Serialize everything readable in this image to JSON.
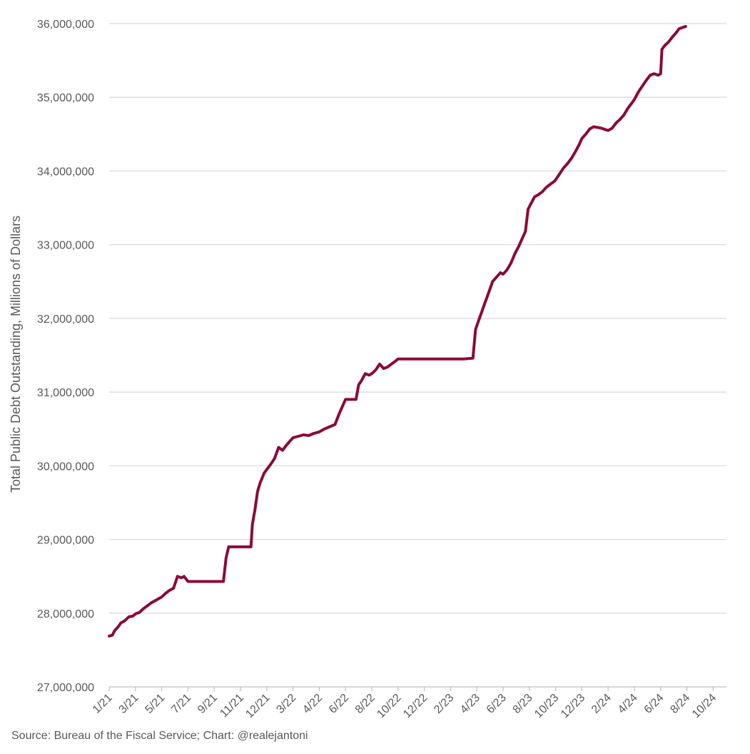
{
  "source_note": "Source: Bureau of the Fiscal Service; Chart: @realejantoni",
  "chart_data": {
    "type": "line",
    "title": "",
    "xlabel": "",
    "ylabel": "Total Public Debt Outstanding, Millions of Dollars",
    "ylim": [
      27000000,
      36000000
    ],
    "y_ticks": [
      27000000,
      28000000,
      29000000,
      30000000,
      31000000,
      32000000,
      33000000,
      34000000,
      35000000,
      36000000
    ],
    "y_tick_labels": [
      "27,000,000",
      "28,000,000",
      "29,000,000",
      "30,000,000",
      "31,000,000",
      "32,000,000",
      "33,000,000",
      "34,000,000",
      "35,000,000",
      "36,000,000"
    ],
    "x_tick_labels": [
      "1/21",
      "3/21",
      "5/21",
      "7/21",
      "9/21",
      "11/21",
      "12/21",
      "3/22",
      "4/22",
      "6/22",
      "8/22",
      "10/22",
      "12/22",
      "2/23",
      "4/23",
      "6/23",
      "8/23",
      "10/23",
      "12/23",
      "2/24",
      "4/24",
      "6/24",
      "8/24",
      "10/24"
    ],
    "grid": true,
    "line_color": "#8b0a3a",
    "series": [
      {
        "values": [
          [
            0,
            27690000
          ],
          [
            0.12,
            27700000
          ],
          [
            0.2,
            27760000
          ],
          [
            0.35,
            27820000
          ],
          [
            0.45,
            27870000
          ],
          [
            0.6,
            27900000
          ],
          [
            0.75,
            27950000
          ],
          [
            0.9,
            27960000
          ],
          [
            1.0,
            27990000
          ],
          [
            1.15,
            28010000
          ],
          [
            1.3,
            28060000
          ],
          [
            1.45,
            28100000
          ],
          [
            1.6,
            28140000
          ],
          [
            1.75,
            28170000
          ],
          [
            1.9,
            28200000
          ],
          [
            2.0,
            28220000
          ],
          [
            2.15,
            28270000
          ],
          [
            2.3,
            28310000
          ],
          [
            2.45,
            28340000
          ],
          [
            2.6,
            28500000
          ],
          [
            2.75,
            28480000
          ],
          [
            2.85,
            28500000
          ],
          [
            3.0,
            28430000
          ],
          [
            3.4,
            28430000
          ],
          [
            3.8,
            28430000
          ],
          [
            4.0,
            28430000
          ],
          [
            4.35,
            28430000
          ],
          [
            4.45,
            28750000
          ],
          [
            4.55,
            28900000
          ],
          [
            5.0,
            28900000
          ],
          [
            5.4,
            28900000
          ],
          [
            5.45,
            29200000
          ],
          [
            5.55,
            29400000
          ],
          [
            5.65,
            29650000
          ],
          [
            5.75,
            29770000
          ],
          [
            5.9,
            29900000
          ],
          [
            6.0,
            29950000
          ],
          [
            6.15,
            30020000
          ],
          [
            6.3,
            30100000
          ],
          [
            6.45,
            30250000
          ],
          [
            6.6,
            30210000
          ],
          [
            6.75,
            30280000
          ],
          [
            6.9,
            30340000
          ],
          [
            7.0,
            30380000
          ],
          [
            7.2,
            30400000
          ],
          [
            7.4,
            30420000
          ],
          [
            7.6,
            30410000
          ],
          [
            7.8,
            30440000
          ],
          [
            8.0,
            30460000
          ],
          [
            8.2,
            30500000
          ],
          [
            8.4,
            30530000
          ],
          [
            8.6,
            30560000
          ],
          [
            8.75,
            30700000
          ],
          [
            8.9,
            30820000
          ],
          [
            9.0,
            30900000
          ],
          [
            9.2,
            30900000
          ],
          [
            9.4,
            30900000
          ],
          [
            9.5,
            31100000
          ],
          [
            9.6,
            31150000
          ],
          [
            9.75,
            31250000
          ],
          [
            9.9,
            31230000
          ],
          [
            10.0,
            31250000
          ],
          [
            10.15,
            31300000
          ],
          [
            10.3,
            31380000
          ],
          [
            10.45,
            31320000
          ],
          [
            10.6,
            31340000
          ],
          [
            10.75,
            31380000
          ],
          [
            10.9,
            31420000
          ],
          [
            11.0,
            31450000
          ],
          [
            11.5,
            31450000
          ],
          [
            12.0,
            31450000
          ],
          [
            12.5,
            31450000
          ],
          [
            13.0,
            31450000
          ],
          [
            13.5,
            31450000
          ],
          [
            13.85,
            31460000
          ],
          [
            13.95,
            31850000
          ],
          [
            14.05,
            31950000
          ],
          [
            14.15,
            32050000
          ],
          [
            14.3,
            32200000
          ],
          [
            14.45,
            32350000
          ],
          [
            14.6,
            32500000
          ],
          [
            14.75,
            32560000
          ],
          [
            14.9,
            32620000
          ],
          [
            15.0,
            32600000
          ],
          [
            15.15,
            32660000
          ],
          [
            15.3,
            32750000
          ],
          [
            15.45,
            32880000
          ],
          [
            15.6,
            32980000
          ],
          [
            15.75,
            33100000
          ],
          [
            15.85,
            33180000
          ],
          [
            15.95,
            33480000
          ],
          [
            16.05,
            33550000
          ],
          [
            16.2,
            33650000
          ],
          [
            16.35,
            33680000
          ],
          [
            16.5,
            33720000
          ],
          [
            16.65,
            33780000
          ],
          [
            16.8,
            33820000
          ],
          [
            16.95,
            33860000
          ],
          [
            17.0,
            33880000
          ],
          [
            17.15,
            33960000
          ],
          [
            17.3,
            34040000
          ],
          [
            17.45,
            34100000
          ],
          [
            17.6,
            34170000
          ],
          [
            17.75,
            34260000
          ],
          [
            17.9,
            34360000
          ],
          [
            18.0,
            34440000
          ],
          [
            18.15,
            34500000
          ],
          [
            18.3,
            34570000
          ],
          [
            18.45,
            34600000
          ],
          [
            18.6,
            34590000
          ],
          [
            18.75,
            34580000
          ],
          [
            18.9,
            34560000
          ],
          [
            19.0,
            34550000
          ],
          [
            19.15,
            34580000
          ],
          [
            19.3,
            34650000
          ],
          [
            19.45,
            34700000
          ],
          [
            19.6,
            34760000
          ],
          [
            19.75,
            34850000
          ],
          [
            19.9,
            34920000
          ],
          [
            20.0,
            34970000
          ],
          [
            20.15,
            35070000
          ],
          [
            20.3,
            35150000
          ],
          [
            20.45,
            35230000
          ],
          [
            20.6,
            35300000
          ],
          [
            20.75,
            35320000
          ],
          [
            20.9,
            35300000
          ],
          [
            21.0,
            35320000
          ],
          [
            21.05,
            35650000
          ],
          [
            21.15,
            35700000
          ],
          [
            21.3,
            35750000
          ],
          [
            21.45,
            35820000
          ],
          [
            21.6,
            35880000
          ],
          [
            21.7,
            35930000
          ],
          [
            21.85,
            35950000
          ],
          [
            21.95,
            35960000
          ]
        ]
      }
    ]
  }
}
